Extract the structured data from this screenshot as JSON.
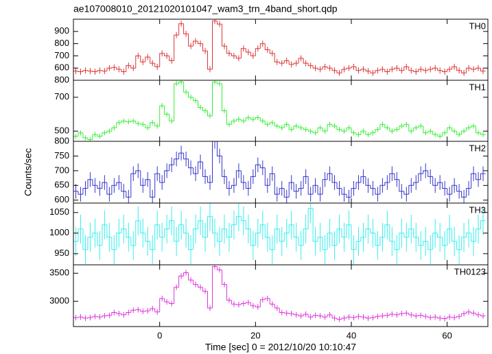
{
  "chart_data": [
    {
      "type": "step",
      "title": "ae107008010_20121020101047_wam3_trn_4band_short.qdp",
      "label": "TH0",
      "color": "#dd3333",
      "xlim": [
        -18,
        68.5
      ],
      "ylim": [
        500,
        1000
      ],
      "yticks": [
        600,
        700,
        800,
        900
      ],
      "error": 25,
      "x": [
        -17.5,
        -16.5,
        -15.5,
        -14.5,
        -13.5,
        -12.5,
        -11.5,
        -10.5,
        -9.5,
        -8.5,
        -7.5,
        -6.5,
        -5.5,
        -4.5,
        -3.5,
        -2.5,
        -1.5,
        -0.5,
        0.5,
        1.5,
        2.5,
        3.5,
        4.5,
        5.5,
        6.5,
        7.5,
        8.5,
        9.5,
        10.5,
        11.5,
        12.5,
        13.5,
        14.5,
        15.5,
        16.5,
        17.5,
        18.5,
        19.5,
        20.5,
        21.5,
        22.5,
        23.5,
        24.5,
        25.5,
        26.5,
        27.5,
        28.5,
        29.5,
        30.5,
        31.5,
        32.5,
        33.5,
        34.5,
        35.5,
        36.5,
        37.5,
        38.5,
        39.5,
        40.5,
        41.5,
        42.5,
        43.5,
        44.5,
        45.5,
        46.5,
        47.5,
        48.5,
        49.5,
        50.5,
        51.5,
        52.5,
        53.5,
        54.5,
        55.5,
        56.5,
        57.5,
        58.5,
        59.5,
        60.5,
        61.5,
        62.5,
        63.5,
        64.5,
        65.5,
        66.5,
        67.5
      ],
      "values": [
        575,
        570,
        580,
        575,
        570,
        580,
        575,
        600,
        605,
        590,
        570,
        620,
        600,
        700,
        650,
        690,
        640,
        610,
        720,
        700,
        660,
        870,
        963,
        880,
        780,
        820,
        800,
        740,
        590,
        985,
        960,
        780,
        720,
        700,
        680,
        760,
        730,
        700,
        760,
        800,
        750,
        720,
        650,
        640,
        660,
        630,
        640,
        680,
        640,
        620,
        600,
        590,
        610,
        600,
        580,
        560,
        590,
        600,
        610,
        580,
        590,
        575,
        560,
        580,
        590,
        570,
        590,
        600,
        580,
        610,
        580,
        570,
        590,
        580,
        590,
        600,
        580,
        570,
        590,
        610,
        580,
        560,
        600,
        590,
        600,
        575
      ]
    },
    {
      "type": "step",
      "label": "TH1",
      "color": "#33ee33",
      "xlim": [
        -18,
        68.5
      ],
      "ylim": [
        440,
        800
      ],
      "yticks": [
        500,
        700,
        800
      ],
      "error": 15,
      "x": [
        -17.5,
        -16.5,
        -15.5,
        -14.5,
        -13.5,
        -12.5,
        -11.5,
        -10.5,
        -9.5,
        -8.5,
        -7.5,
        -6.5,
        -5.5,
        -4.5,
        -3.5,
        -2.5,
        -1.5,
        -0.5,
        0.5,
        1.5,
        2.5,
        3.5,
        4.5,
        5.5,
        6.5,
        7.5,
        8.5,
        9.5,
        10.5,
        11.5,
        12.5,
        13.5,
        14.5,
        15.5,
        16.5,
        17.5,
        18.5,
        19.5,
        20.5,
        21.5,
        22.5,
        23.5,
        24.5,
        25.5,
        26.5,
        27.5,
        28.5,
        29.5,
        30.5,
        31.5,
        32.5,
        33.5,
        34.5,
        35.5,
        36.5,
        37.5,
        38.5,
        39.5,
        40.5,
        41.5,
        42.5,
        43.5,
        44.5,
        45.5,
        46.5,
        47.5,
        48.5,
        49.5,
        50.5,
        51.5,
        52.5,
        53.5,
        54.5,
        55.5,
        56.5,
        57.5,
        58.5,
        59.5,
        60.5,
        61.5,
        62.5,
        63.5,
        64.5,
        65.5,
        66.5,
        67.5
      ],
      "values": [
        470,
        490,
        460,
        450,
        480,
        470,
        490,
        500,
        520,
        550,
        560,
        555,
        560,
        545,
        540,
        520,
        550,
        530,
        650,
        600,
        560,
        780,
        790,
        730,
        700,
        680,
        640,
        620,
        590,
        790,
        780,
        620,
        540,
        560,
        570,
        560,
        580,
        570,
        580,
        560,
        540,
        550,
        530,
        520,
        540,
        510,
        530,
        520,
        510,
        500,
        490,
        520,
        500,
        540,
        530,
        510,
        500,
        520,
        490,
        480,
        500,
        480,
        490,
        510,
        540,
        520,
        500,
        510,
        530,
        540,
        500,
        520,
        530,
        490,
        500,
        480,
        470,
        490,
        520,
        500,
        480,
        500,
        520,
        530,
        490,
        480
      ]
    },
    {
      "type": "step",
      "label": "TH2",
      "color": "#3333cc",
      "y_label": "Counts/sec",
      "xlim": [
        -18,
        68.5
      ],
      "ylim": [
        590,
        800
      ],
      "yticks": [
        600,
        650,
        700,
        750,
        800
      ],
      "error": 25,
      "x": [
        -17.5,
        -16.5,
        -15.5,
        -14.5,
        -13.5,
        -12.5,
        -11.5,
        -10.5,
        -9.5,
        -8.5,
        -7.5,
        -6.5,
        -5.5,
        -4.5,
        -3.5,
        -2.5,
        -1.5,
        -0.5,
        0.5,
        1.5,
        2.5,
        3.5,
        4.5,
        5.5,
        6.5,
        7.5,
        8.5,
        9.5,
        10.5,
        11.5,
        12.5,
        13.5,
        14.5,
        15.5,
        16.5,
        17.5,
        18.5,
        19.5,
        20.5,
        21.5,
        22.5,
        23.5,
        24.5,
        25.5,
        26.5,
        27.5,
        28.5,
        29.5,
        30.5,
        31.5,
        32.5,
        33.5,
        34.5,
        35.5,
        36.5,
        37.5,
        38.5,
        39.5,
        40.5,
        41.5,
        42.5,
        43.5,
        44.5,
        45.5,
        46.5,
        47.5,
        48.5,
        49.5,
        50.5,
        51.5,
        52.5,
        53.5,
        54.5,
        55.5,
        56.5,
        57.5,
        58.5,
        59.5,
        60.5,
        61.5,
        62.5,
        63.5,
        64.5,
        65.5,
        66.5,
        67.5
      ],
      "values": [
        630,
        620,
        640,
        670,
        650,
        640,
        660,
        620,
        650,
        660,
        630,
        610,
        690,
        700,
        650,
        670,
        610,
        690,
        660,
        700,
        720,
        740,
        760,
        740,
        710,
        690,
        730,
        680,
        660,
        800,
        750,
        680,
        640,
        650,
        700,
        660,
        640,
        680,
        720,
        710,
        650,
        690,
        620,
        640,
        610,
        660,
        630,
        640,
        680,
        620,
        650,
        620,
        670,
        690,
        660,
        640,
        620,
        610,
        640,
        660,
        680,
        650,
        640,
        620,
        650,
        660,
        690,
        670,
        630,
        620,
        650,
        660,
        690,
        700,
        680,
        650,
        660,
        640,
        620,
        650,
        630,
        610,
        640,
        690,
        670,
        690
      ]
    },
    {
      "type": "step",
      "label": "TH3",
      "color": "#33eeee",
      "xlim": [
        -18,
        68.5
      ],
      "ylim": [
        923,
        1073
      ],
      "yticks": [
        950,
        1000,
        1050
      ],
      "error": 35,
      "x": [
        -17.5,
        -16.5,
        -15.5,
        -14.5,
        -13.5,
        -12.5,
        -11.5,
        -10.5,
        -9.5,
        -8.5,
        -7.5,
        -6.5,
        -5.5,
        -4.5,
        -3.5,
        -2.5,
        -1.5,
        -0.5,
        0.5,
        1.5,
        2.5,
        3.5,
        4.5,
        5.5,
        6.5,
        7.5,
        8.5,
        9.5,
        10.5,
        11.5,
        12.5,
        13.5,
        14.5,
        15.5,
        16.5,
        17.5,
        18.5,
        19.5,
        20.5,
        21.5,
        22.5,
        23.5,
        24.5,
        25.5,
        26.5,
        27.5,
        28.5,
        29.5,
        30.5,
        31.5,
        32.5,
        33.5,
        34.5,
        35.5,
        36.5,
        37.5,
        38.5,
        39.5,
        40.5,
        41.5,
        42.5,
        43.5,
        44.5,
        45.5,
        46.5,
        47.5,
        48.5,
        49.5,
        50.5,
        51.5,
        52.5,
        53.5,
        54.5,
        55.5,
        56.5,
        57.5,
        58.5,
        59.5,
        60.5,
        61.5,
        62.5,
        63.5,
        64.5,
        65.5,
        66.5,
        67.5
      ],
      "values": [
        980,
        1010,
        960,
        990,
        1000,
        970,
        1020,
        990,
        960,
        1000,
        1010,
        990,
        970,
        1030,
        1000,
        980,
        960,
        1020,
        990,
        1010,
        1030,
        980,
        1020,
        1000,
        960,
        1010,
        1030,
        990,
        1040,
        1000,
        980,
        1010,
        990,
        1020,
        1040,
        1030,
        1010,
        970,
        1000,
        1020,
        990,
        960,
        1010,
        980,
        1000,
        1020,
        990,
        970,
        1010,
        1060,
        980,
        990,
        960,
        1000,
        970,
        1010,
        990,
        1020,
        960,
        980,
        990,
        1010,
        1000,
        970,
        990,
        1020,
        980,
        960,
        1000,
        990,
        1010,
        990,
        970,
        980,
        960,
        1000,
        990,
        970,
        1010,
        980,
        960,
        990,
        1000,
        980,
        1010,
        1030
      ]
    },
    {
      "type": "step",
      "label": "TH0123",
      "color": "#dd33dd",
      "x_label": "Time [sec] 0 = 2012/10/20 10:10:47",
      "xlim": [
        -18,
        68.5
      ],
      "xticks": [
        0,
        20,
        40,
        60
      ],
      "ylim": [
        2550,
        3650
      ],
      "yticks": [
        3000,
        3500
      ],
      "error": 50,
      "x": [
        -17.5,
        -16.5,
        -15.5,
        -14.5,
        -13.5,
        -12.5,
        -11.5,
        -10.5,
        -9.5,
        -8.5,
        -7.5,
        -6.5,
        -5.5,
        -4.5,
        -3.5,
        -2.5,
        -1.5,
        -0.5,
        0.5,
        1.5,
        2.5,
        3.5,
        4.5,
        5.5,
        6.5,
        7.5,
        8.5,
        9.5,
        10.5,
        11.5,
        12.5,
        13.5,
        14.5,
        15.5,
        16.5,
        17.5,
        18.5,
        19.5,
        20.5,
        21.5,
        22.5,
        23.5,
        24.5,
        25.5,
        26.5,
        27.5,
        28.5,
        29.5,
        30.5,
        31.5,
        32.5,
        33.5,
        34.5,
        35.5,
        36.5,
        37.5,
        38.5,
        39.5,
        40.5,
        41.5,
        42.5,
        43.5,
        44.5,
        45.5,
        46.5,
        47.5,
        48.5,
        49.5,
        50.5,
        51.5,
        52.5,
        53.5,
        54.5,
        55.5,
        56.5,
        57.5,
        58.5,
        59.5,
        60.5,
        61.5,
        62.5,
        63.5,
        64.5,
        65.5,
        66.5,
        67.5
      ],
      "values": [
        2710,
        2720,
        2700,
        2710,
        2730,
        2720,
        2740,
        2750,
        2800,
        2780,
        2760,
        2800,
        2840,
        2850,
        2820,
        2830,
        2870,
        2810,
        3050,
        2990,
        2960,
        3250,
        3450,
        3510,
        3380,
        3300,
        3250,
        3180,
        2880,
        3620,
        3560,
        3300,
        3020,
        2950,
        2940,
        2960,
        2980,
        2920,
        2900,
        3030,
        3050,
        2950,
        2880,
        2800,
        2790,
        2780,
        2760,
        2740,
        2770,
        2720,
        2750,
        2740,
        2720,
        2760,
        2700,
        2680,
        2700,
        2720,
        2710,
        2730,
        2720,
        2700,
        2710,
        2730,
        2740,
        2750,
        2770,
        2760,
        2780,
        2790,
        2760,
        2740,
        2750,
        2730,
        2710,
        2720,
        2700,
        2690,
        2720,
        2710,
        2730,
        2780,
        2810,
        2790,
        2760,
        2740
      ]
    }
  ]
}
